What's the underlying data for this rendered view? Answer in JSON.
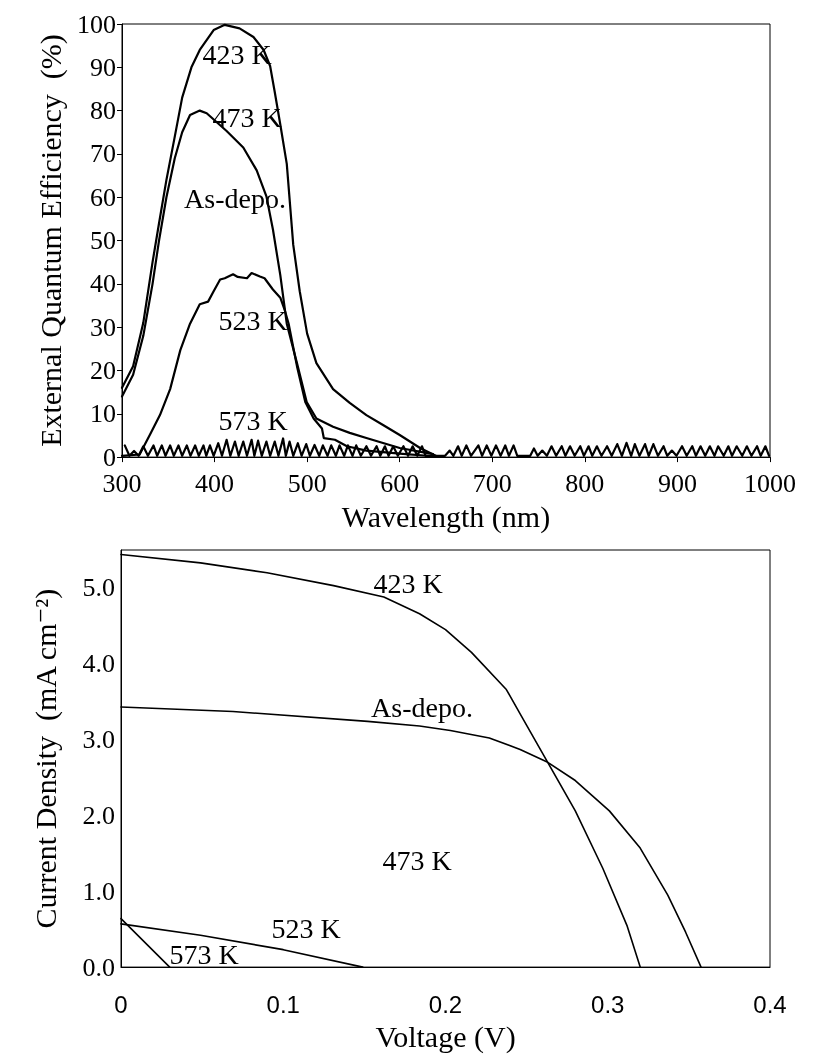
{
  "chart_data": [
    {
      "type": "line",
      "xlabel": "Wavelength (nm)",
      "ylabel": "External Quantum Efficiency  (%)",
      "xlim": [
        300,
        1000
      ],
      "ylim": [
        0,
        100
      ],
      "xticks": [
        300,
        400,
        500,
        600,
        700,
        800,
        900,
        1000
      ],
      "yticks": [
        0,
        10,
        20,
        30,
        40,
        50,
        60,
        70,
        80,
        90,
        100
      ],
      "series": [
        {
          "color": "#000000",
          "x": [
            300,
            312,
            323,
            333,
            340,
            348,
            357,
            365,
            375,
            384,
            399,
            411,
            427,
            442,
            453,
            460,
            465,
            471,
            478,
            485,
            492,
            500,
            510,
            528,
            546,
            564,
            582,
            600,
            622,
            640
          ],
          "values": [
            16,
            21,
            31,
            45,
            54,
            64,
            74,
            83,
            90,
            94,
            98.6,
            99.8,
            99,
            97,
            94,
            90.3,
            84.3,
            76.8,
            67.7,
            49,
            38.3,
            28.5,
            21.7,
            15.7,
            12.5,
            9.7,
            7.4,
            5.1,
            2.1,
            0.2
          ]
        },
        {
          "color": "#000000",
          "x": [
            300,
            312,
            323,
            333,
            340,
            348,
            357,
            365,
            373.5,
            384,
            391.5,
            413,
            431,
            445.5,
            456,
            463,
            471,
            478,
            489,
            499.5,
            510,
            528,
            546,
            564,
            600,
            636
          ],
          "values": [
            14,
            19,
            28,
            40,
            50,
            60,
            69,
            75,
            79,
            80,
            79.4,
            75.3,
            71.5,
            66.2,
            60.2,
            52.6,
            42,
            30.8,
            21.7,
            12.7,
            8.9,
            7,
            5.6,
            4.4,
            2.1,
            0.7
          ]
        },
        {
          "color": "#000000",
          "x": [
            300,
            319,
            330,
            341,
            352,
            363,
            373.5,
            384,
            393,
            399,
            406,
            411,
            420,
            425,
            435,
            440,
            449,
            454,
            463,
            471,
            476,
            480,
            489,
            498,
            507,
            516,
            518,
            530,
            543,
            564,
            600,
            636
          ],
          "values": [
            0.3,
            0.6,
            5.1,
            9.7,
            15.7,
            24.7,
            30.8,
            35.3,
            35.9,
            38.3,
            41,
            41.3,
            42.2,
            41.6,
            41.3,
            42.5,
            41.7,
            41.3,
            38.7,
            36.8,
            33.8,
            30.8,
            21,
            12.7,
            8.9,
            6.6,
            4.4,
            4,
            2.5,
            1.5,
            0.8,
            0.2
          ]
        },
        {
          "color": "#000000",
          "x": [
            303,
            308,
            313,
            318,
            323,
            328,
            334,
            338,
            343,
            347,
            352,
            356,
            361,
            365,
            370,
            374,
            379,
            383,
            388,
            391,
            395,
            399,
            404,
            408,
            413,
            417,
            422,
            426,
            431,
            435,
            440,
            443,
            447,
            451,
            456,
            460,
            465,
            469,
            474,
            477,
            481,
            485,
            490,
            494,
            499,
            503,
            508,
            513,
            517,
            522,
            526,
            531,
            535,
            540,
            544,
            549,
            553,
            558,
            564,
            569,
            575,
            579,
            584,
            588,
            593,
            598,
            604,
            609,
            614,
            619,
            624,
            628,
            649,
            654,
            658,
            663,
            667,
            672,
            677,
            685,
            689,
            694,
            699,
            704,
            709,
            714,
            718,
            723,
            727,
            741,
            745,
            749,
            754,
            759,
            764,
            769,
            775,
            779,
            784,
            789,
            795,
            799,
            804,
            808,
            813,
            818,
            824,
            829,
            835,
            840,
            845,
            850,
            854,
            859,
            865,
            869,
            874,
            879,
            885,
            889,
            894,
            899,
            905,
            910,
            916,
            920,
            925,
            930,
            935,
            940,
            944,
            950,
            955,
            959,
            964,
            970,
            975,
            980,
            986,
            990,
            995,
            999
          ],
          "values": [
            2.7,
            0.3,
            1.4,
            0.3,
            2.5,
            0.3,
            2.7,
            0.3,
            2.7,
            0.3,
            2.7,
            0.3,
            2.7,
            0.3,
            2.7,
            0.3,
            2.7,
            0.3,
            2.7,
            0.3,
            2.7,
            0.3,
            3.2,
            0.3,
            4,
            0.3,
            3.6,
            0.3,
            3.6,
            0.3,
            4,
            0.3,
            3.8,
            0.3,
            3.6,
            0.3,
            3.6,
            0.3,
            4.3,
            0.3,
            3.6,
            0.3,
            3.2,
            0.3,
            3,
            0.3,
            2.8,
            0.3,
            2.7,
            0.3,
            2.7,
            0.3,
            2.7,
            0.3,
            2.7,
            0.3,
            2.7,
            0.3,
            2.5,
            0.3,
            2.5,
            0.3,
            2.5,
            0.3,
            2.5,
            0.3,
            2.5,
            0.3,
            2.5,
            0.3,
            2.5,
            0.3,
            0.3,
            1.5,
            0.3,
            2.5,
            0.3,
            2.7,
            0.3,
            2.7,
            0.3,
            2.7,
            0.3,
            2.7,
            0.3,
            2.7,
            0.3,
            2.7,
            0.3,
            0.3,
            2,
            0.3,
            1.5,
            0.3,
            2.5,
            0.3,
            2.5,
            0.3,
            2.5,
            0.3,
            2.5,
            0.3,
            2.5,
            0.3,
            2.5,
            0.3,
            2.5,
            0.3,
            3,
            0.3,
            3.3,
            0.3,
            3,
            0.3,
            3,
            0.3,
            3,
            0.3,
            2.5,
            0.3,
            1.5,
            0.3,
            2.5,
            0.3,
            2.5,
            0.3,
            2.5,
            0.3,
            2.5,
            0.3,
            2.5,
            0.3,
            2.5,
            0.3,
            2.5,
            0.3,
            2.5,
            0.3,
            2.5,
            0.3,
            2.5,
            0.3
          ]
        }
      ],
      "annotations": [
        "423 K",
        "473 K",
        "As-depo.",
        "523 K",
        "573 K"
      ]
    },
    {
      "type": "line",
      "xlabel": "Voltage (V)",
      "ylabel": "Current Density  (mA cm⁻²)",
      "xlim": [
        0,
        0.4
      ],
      "ylim": [
        0,
        5.5
      ],
      "xticks": [
        0,
        0.1,
        0.2,
        0.3,
        0.4
      ],
      "yticks": [
        {
          "value": 0,
          "label": "0.0"
        },
        {
          "value": 1,
          "label": "1.0"
        },
        {
          "value": 2,
          "label": "2.0"
        },
        {
          "value": 3,
          "label": "3.0"
        },
        {
          "value": 4,
          "label": "4.0"
        },
        {
          "value": 5,
          "label": "5.0"
        }
      ],
      "series": [
        {
          "color": "#000000",
          "x": [
            0,
            0.049,
            0.09,
            0.131,
            0.162,
            0.184,
            0.2,
            0.216,
            0.2375,
            0.246,
            0.263,
            0.28,
            0.297,
            0.312,
            0.32
          ],
          "values": [
            5.44,
            5.33,
            5.2,
            5.03,
            4.88,
            4.66,
            4.45,
            4.15,
            3.66,
            3.34,
            2.7,
            2.06,
            1.3,
            0.54,
            0
          ]
        },
        {
          "color": "#000000",
          "x": [
            0,
            0.069,
            0.152,
            0.184,
            0.203,
            0.227,
            0.246,
            0.263,
            0.28,
            0.301,
            0.32,
            0.337,
            0.348,
            0.3575
          ],
          "values": [
            3.43,
            3.37,
            3.24,
            3.18,
            3.12,
            3.02,
            2.87,
            2.7,
            2.46,
            2.06,
            1.57,
            0.95,
            0.46,
            0
          ]
        },
        {
          "color": "#000000",
          "x": [
            0,
            0.049,
            0.1,
            0.149
          ],
          "values": [
            0.57,
            0.42,
            0.23,
            0
          ]
        },
        {
          "color": "#000000",
          "x": [
            0,
            0.03
          ],
          "values": [
            0.64,
            0
          ]
        }
      ],
      "annotations": [
        "423 K",
        "As-depo.",
        "473 K",
        "523 K",
        "573 K"
      ]
    }
  ]
}
